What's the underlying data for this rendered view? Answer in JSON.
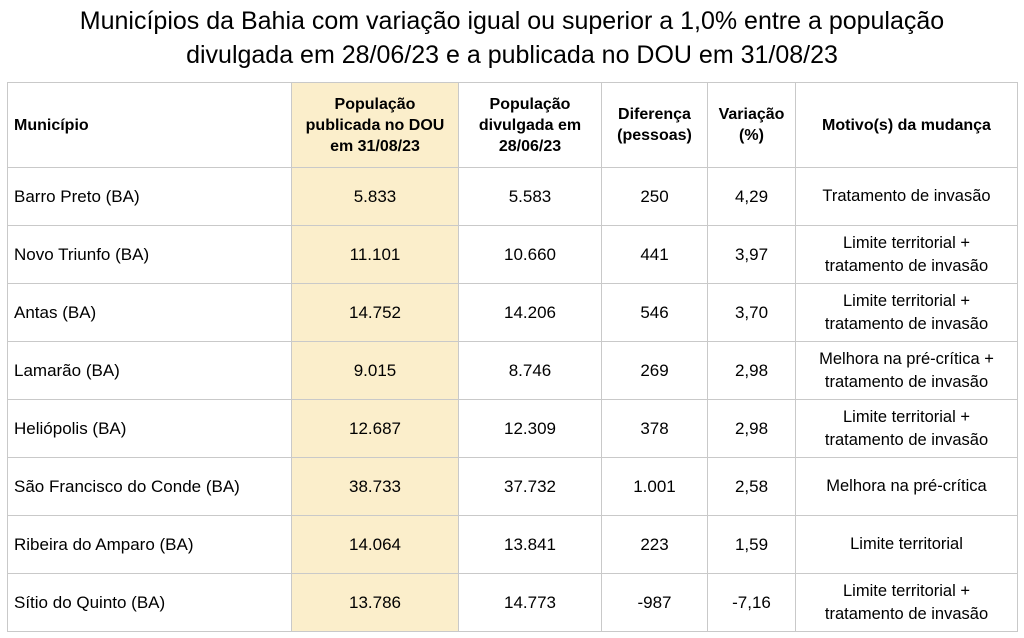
{
  "title": {
    "line1": "Municípios da Bahia com variação igual ou superior a 1,0% entre a população",
    "line2": "divulgada em 28/06/23 e a publicada no DOU em 31/08/23"
  },
  "colors": {
    "highlight_column": "#fbeecb",
    "grid": "#c9c9c9"
  },
  "headers": [
    [
      "Município"
    ],
    [
      "População",
      "publicada no DOU",
      "em 31/08/23"
    ],
    [
      "População",
      "divulgada em",
      "28/06/23"
    ],
    [
      "Diferença",
      "(pessoas)"
    ],
    [
      "Variação",
      "(%)"
    ],
    [
      "Motivo(s) da mudança"
    ]
  ],
  "rows": [
    {
      "municipio": "Barro Preto (BA)",
      "dou": "5.833",
      "divulgada": "5.583",
      "diferenca": "250",
      "variacao": "4,29",
      "motivo": [
        "Tratamento de invasão"
      ]
    },
    {
      "municipio": "Novo Triunfo (BA)",
      "dou": "11.101",
      "divulgada": "10.660",
      "diferenca": "441",
      "variacao": "3,97",
      "motivo": [
        "Limite territorial +",
        "tratamento de invasão"
      ]
    },
    {
      "municipio": "Antas (BA)",
      "dou": "14.752",
      "divulgada": "14.206",
      "diferenca": "546",
      "variacao": "3,70",
      "motivo": [
        "Limite territorial +",
        "tratamento de invasão"
      ]
    },
    {
      "municipio": "Lamarão (BA)",
      "dou": "9.015",
      "divulgada": "8.746",
      "diferenca": "269",
      "variacao": "2,98",
      "motivo": [
        "Melhora na pré-crítica +",
        "tratamento de invasão"
      ]
    },
    {
      "municipio": "Heliópolis (BA)",
      "dou": "12.687",
      "divulgada": "12.309",
      "diferenca": "378",
      "variacao": "2,98",
      "motivo": [
        "Limite territorial +",
        "tratamento de invasão"
      ]
    },
    {
      "municipio": "São Francisco do Conde (BA)",
      "dou": "38.733",
      "divulgada": "37.732",
      "diferenca": "1.001",
      "variacao": "2,58",
      "motivo": [
        "Melhora na pré-crítica"
      ]
    },
    {
      "municipio": "Ribeira do Amparo (BA)",
      "dou": "14.064",
      "divulgada": "13.841",
      "diferenca": "223",
      "variacao": "1,59",
      "motivo": [
        "Limite territorial"
      ]
    },
    {
      "municipio": "Sítio do Quinto (BA)",
      "dou": "13.786",
      "divulgada": "14.773",
      "diferenca": "-987",
      "variacao": "-7,16",
      "motivo": [
        "Limite territorial +",
        "tratamento de invasão"
      ]
    }
  ]
}
